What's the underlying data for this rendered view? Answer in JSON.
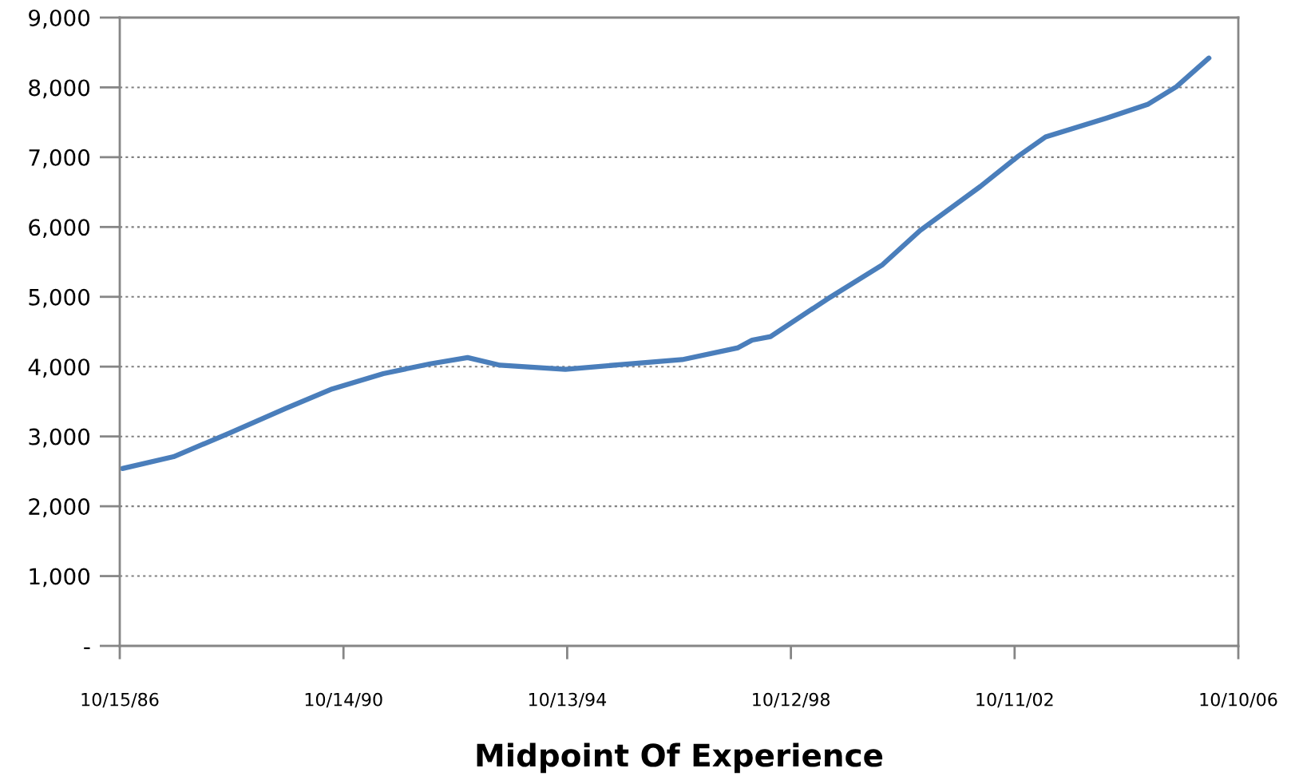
{
  "chart_data": {
    "type": "line",
    "xlabel": "Midpoint Of Experience",
    "x": [
      "1986-11",
      "1987-10",
      "1988-10",
      "1989-10",
      "1990-08",
      "1991-07",
      "1992-05",
      "1993-01",
      "1993-08",
      "1994-10",
      "1995-10",
      "1996-11",
      "1997-11",
      "1998-02",
      "1998-06",
      "1999-06",
      "2000-06",
      "2001-02",
      "2002-03",
      "2002-11",
      "2003-05",
      "2004-06",
      "2005-03",
      "2005-09",
      "2006-04"
    ],
    "series": [
      {
        "color": "#4a7ebb",
        "values": [
          2540,
          2710,
          3050,
          3400,
          3680,
          3900,
          4040,
          4130,
          4020,
          3960,
          4030,
          4100,
          4270,
          4380,
          4430,
          4960,
          5460,
          5950,
          6580,
          7010,
          7290,
          7560,
          7760,
          8010,
          8420
        ]
      }
    ],
    "xlim": [
      "1986-10-15",
      "2006-10-10"
    ],
    "xticks": [
      {
        "value": "1986-10-15",
        "label": "10/15/86"
      },
      {
        "value": "1990-10-14",
        "label": "10/14/90"
      },
      {
        "value": "1994-10-13",
        "label": "10/13/94"
      },
      {
        "value": "1998-10-12",
        "label": "10/12/98"
      },
      {
        "value": "2002-10-11",
        "label": "10/11/02"
      },
      {
        "value": "2006-10-10",
        "label": "10/10/06"
      }
    ],
    "ylim": [
      0,
      9000
    ],
    "yticks": [
      {
        "value": 0,
        "label": "-"
      },
      {
        "value": 1000,
        "label": "1,000"
      },
      {
        "value": 2000,
        "label": "2,000"
      },
      {
        "value": 3000,
        "label": "3,000"
      },
      {
        "value": 4000,
        "label": "4,000"
      },
      {
        "value": 5000,
        "label": "5,000"
      },
      {
        "value": 6000,
        "label": "6,000"
      },
      {
        "value": 7000,
        "label": "7,000"
      },
      {
        "value": 8000,
        "label": "8,000"
      },
      {
        "value": 9000,
        "label": "9,000"
      }
    ],
    "grid": "y",
    "legend": false,
    "line_style": "solid",
    "marker": "none"
  }
}
